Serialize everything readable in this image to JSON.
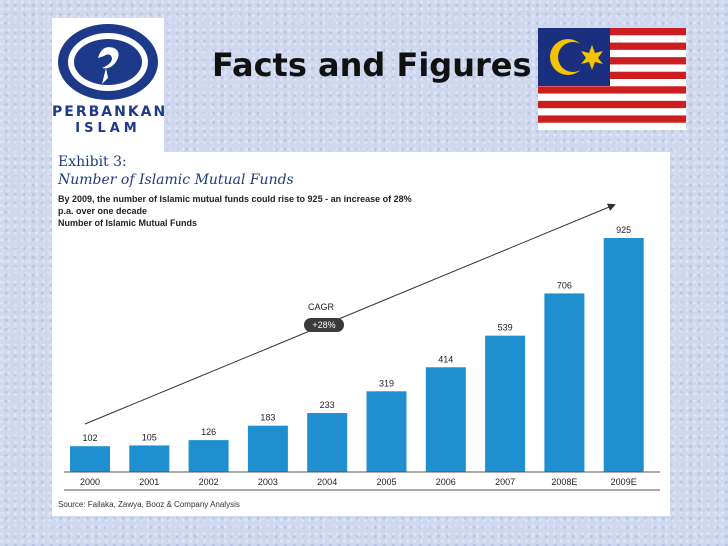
{
  "header": {
    "title": "Facts and Figures"
  },
  "logo": {
    "line1": "PERBANKAN",
    "line2": "ISLAM"
  },
  "flag": {
    "name": "malaysia-flag",
    "colors": {
      "red": "#cc1e1e",
      "white": "#ffffff",
      "blue": "#1a2f7d",
      "yellow": "#f4c400"
    }
  },
  "exhibit": {
    "label": "Exhibit 3:",
    "subtitle": "Number of Islamic Mutual Funds",
    "description_line1": "By 2009, the number of Islamic mutual funds could rise to 925 - an increase of 28%",
    "description_line2": "p.a. over one decade",
    "description_line3": "Number of Islamic Mutual Funds",
    "source": "Source: Failaka, Zawya, Booz & Company Analysis"
  },
  "chart_data": {
    "type": "bar",
    "categories": [
      "2000",
      "2001",
      "2002",
      "2003",
      "2004",
      "2005",
      "2006",
      "2007",
      "2008E",
      "2009E"
    ],
    "values": [
      102,
      105,
      126,
      183,
      233,
      319,
      414,
      539,
      706,
      925
    ],
    "ylim": [
      0,
      925
    ],
    "grid": false,
    "legend": "none",
    "bar_color": "#1f8fd0",
    "annotation": {
      "label": "CAGR",
      "badge": "+28%"
    }
  }
}
